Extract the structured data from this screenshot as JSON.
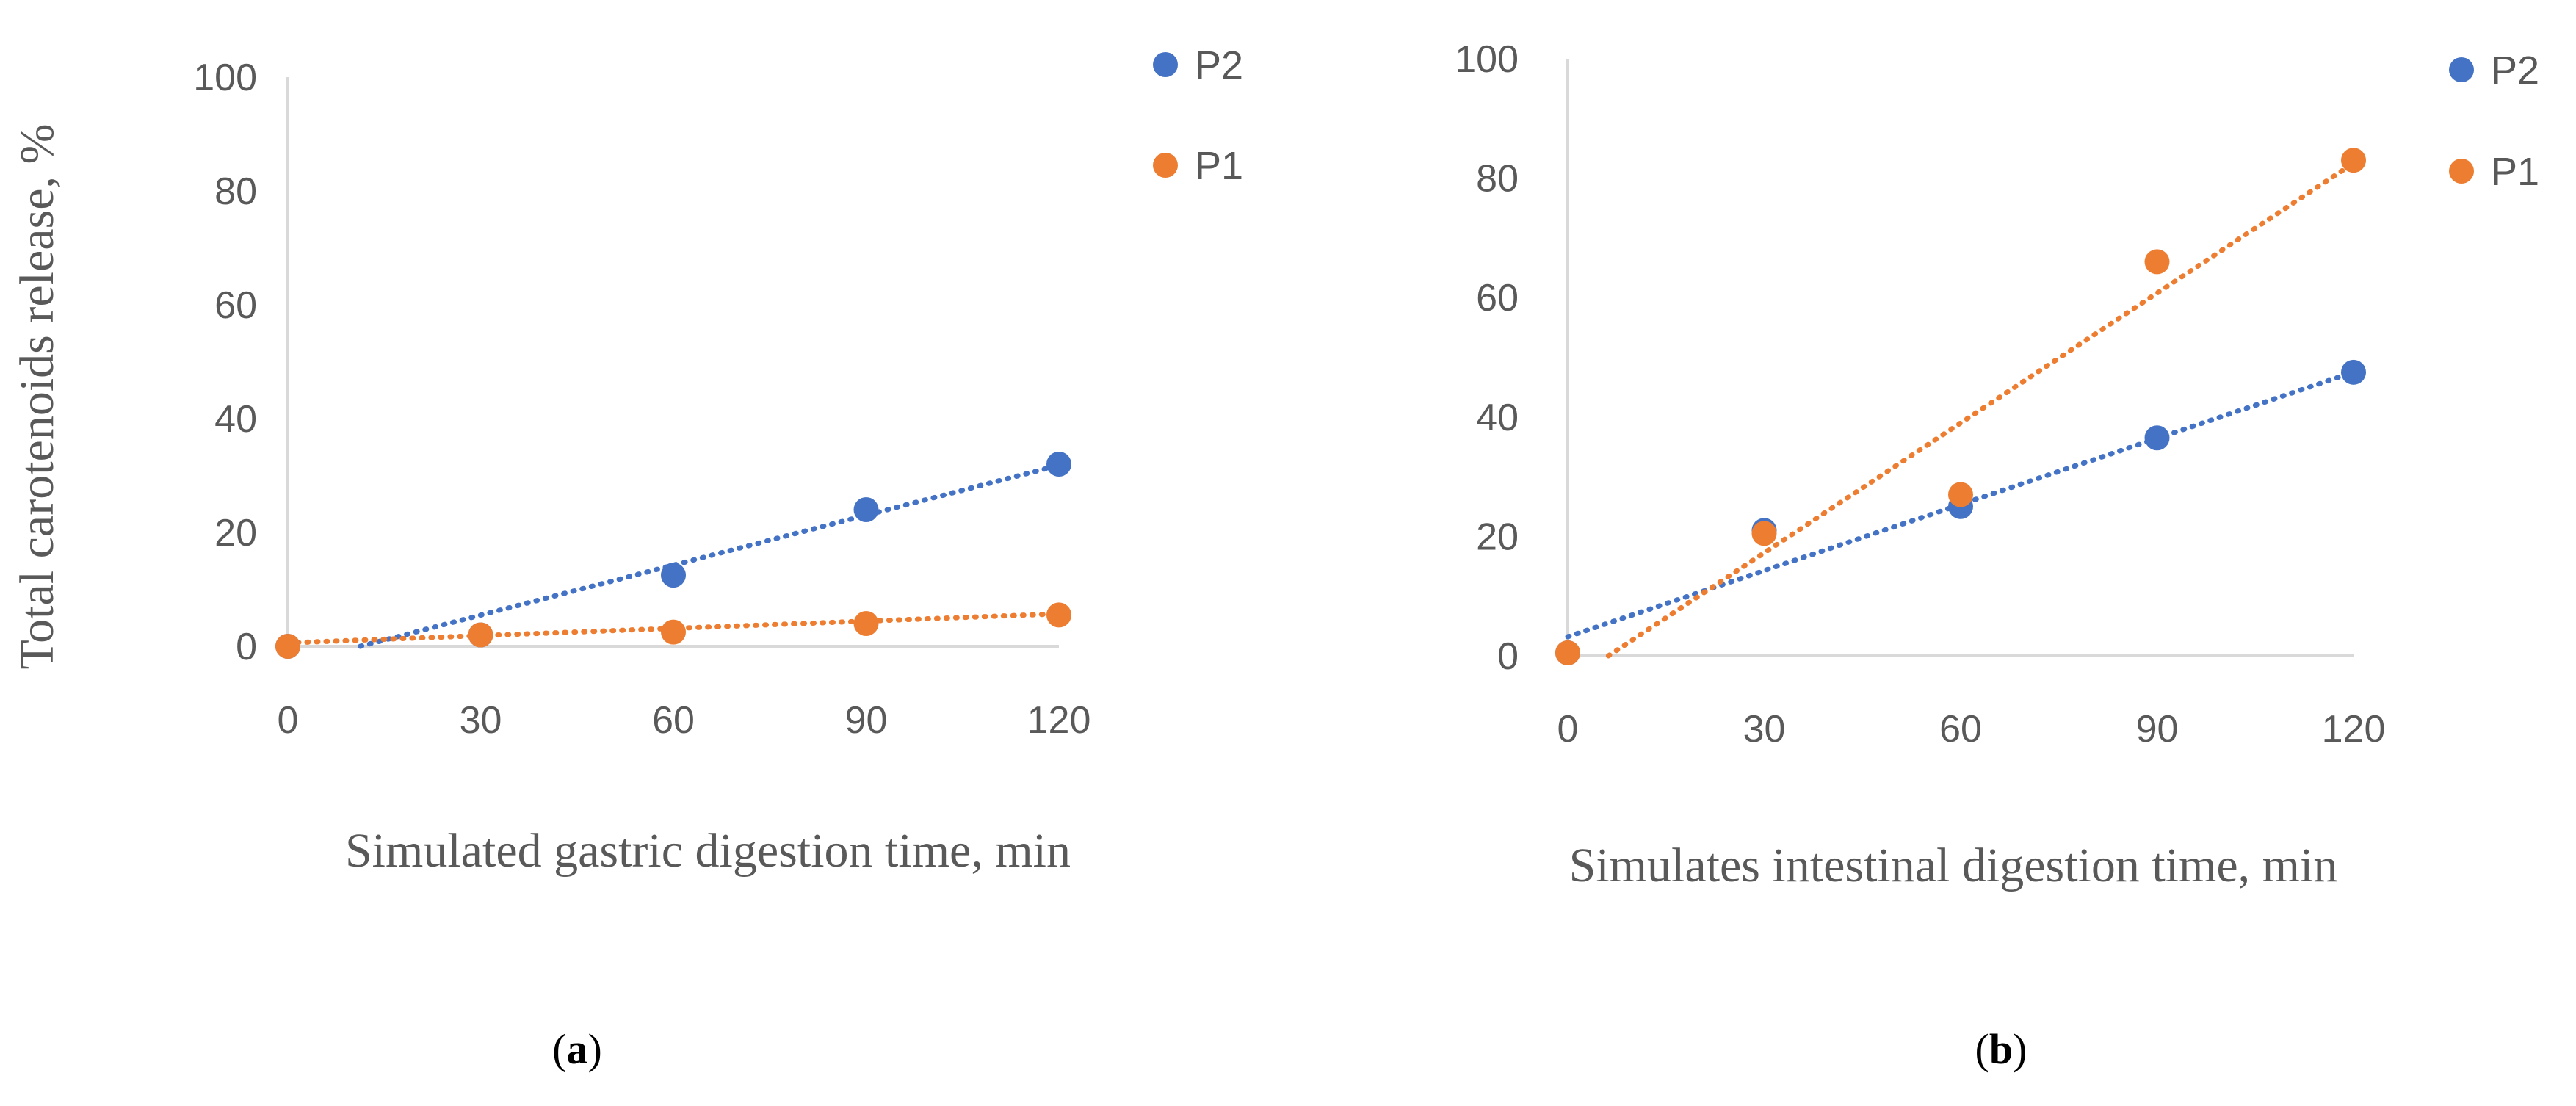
{
  "panel_labels": {
    "a_open": "(",
    "a": "a",
    "a_close": ")",
    "b_open": "(",
    "b": "b",
    "b_close": ")"
  },
  "colors": {
    "P2": "#4472C4",
    "P1": "#ED7D31",
    "axis": "#D9D9D9",
    "text": "#595959"
  },
  "chart_data": [
    {
      "id": "a",
      "type": "scatter",
      "title": "",
      "xlabel": "Simulated gastric digestion time, min",
      "ylabel": "Total carotenoids release, %",
      "xlim": [
        0,
        120
      ],
      "ylim": [
        0,
        100
      ],
      "xticks": [
        0,
        30,
        60,
        90,
        120
      ],
      "yticks": [
        0,
        20,
        40,
        60,
        80,
        100
      ],
      "legend": [
        "P2",
        "P1"
      ],
      "legend_position": "top-right",
      "grid": false,
      "series": [
        {
          "name": "P2",
          "x": [
            0,
            30,
            60,
            90,
            120
          ],
          "y": [
            0,
            2,
            12.5,
            24,
            32
          ],
          "trendline": {
            "type": "linear",
            "y_at_0": -3.3,
            "y_at_120": 31.8
          }
        },
        {
          "name": "P1",
          "x": [
            0,
            30,
            60,
            90,
            120
          ],
          "y": [
            0,
            2,
            2.5,
            4,
            5.5
          ],
          "trendline": {
            "type": "linear",
            "y_at_0": 0.6,
            "y_at_120": 5.7
          }
        }
      ]
    },
    {
      "id": "b",
      "type": "scatter",
      "title": "",
      "xlabel": "Simulates intestinal digestion time, min",
      "ylabel": "",
      "xlim": [
        0,
        120
      ],
      "ylim": [
        0,
        100
      ],
      "xticks": [
        0,
        30,
        60,
        90,
        120
      ],
      "yticks": [
        0,
        20,
        40,
        60,
        80,
        100
      ],
      "legend": [
        "P2",
        "P1"
      ],
      "legend_position": "top-right",
      "grid": false,
      "series": [
        {
          "name": "P2",
          "x": [
            0,
            30,
            60,
            90,
            120
          ],
          "y": [
            0.5,
            21,
            25,
            36.5,
            47.5
          ],
          "trendline": {
            "type": "linear",
            "y_at_0": 3.2,
            "y_at_120": 47.5
          }
        },
        {
          "name": "P1",
          "x": [
            0,
            30,
            60,
            90,
            120
          ],
          "y": [
            0.5,
            20.5,
            27,
            66,
            83
          ],
          "trendline": {
            "type": "linear",
            "y_at_0": -4.5,
            "y_at_120": 82.5
          }
        }
      ]
    }
  ]
}
